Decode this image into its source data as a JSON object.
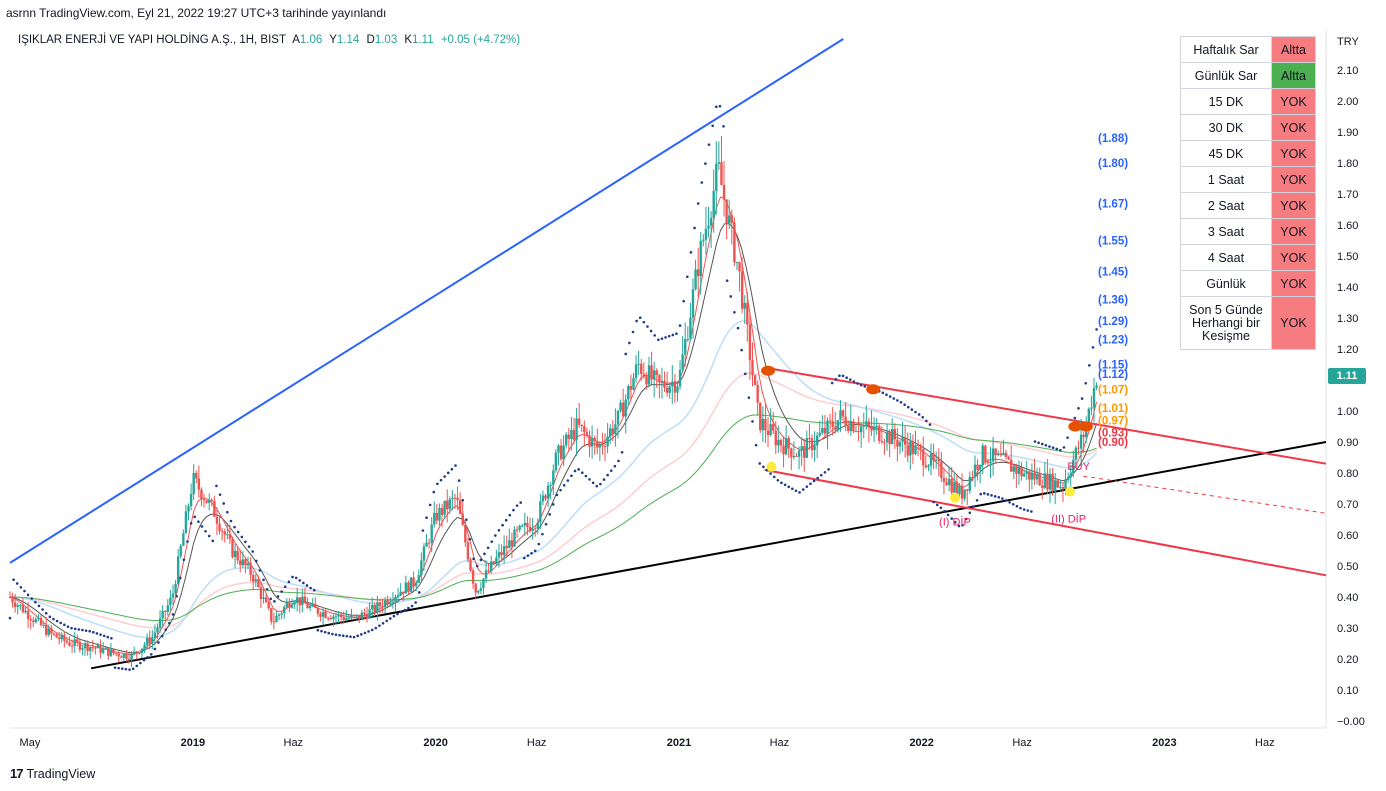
{
  "header": {
    "published": "asrnn TradingView.com, Eyl 21, 2022 19:27 UTC+3 tarihinde yayınlandı"
  },
  "legend": {
    "symbol": "IŞIKLAR ENERJİ VE YAPI HOLDİNG A.Ş., 1H, BIST",
    "a_label": "A",
    "a_value": "1.06",
    "y_label": "Y",
    "y_value": "1.14",
    "d_label": "D",
    "d_value": "1.03",
    "k_label": "K",
    "k_value": "1.11",
    "change": "+0.05 (+4.72%)"
  },
  "price_badge": "1.11",
  "footer": {
    "brand": "TradingView",
    "brand_mark": "17"
  },
  "colors": {
    "up": "#26a69a",
    "down": "#ef5350",
    "blue_trend": "#2962ff",
    "black_trend": "#000000",
    "channel": "#f23645",
    "ma_green": "#4caf50",
    "ma_blue": "#bbdefb",
    "ma_pink": "#ffcdd2",
    "status_red": "#f77c80",
    "status_green": "#4caf50",
    "fib_blue": "#2962ff",
    "fib_orange": "#ff9800",
    "fib_red": "#f23645"
  },
  "signal_table": {
    "rows": [
      {
        "name": "Haftalık Sar",
        "status": "Altta",
        "color": "#f77c80"
      },
      {
        "name": "Günlük Sar",
        "status": "Altta",
        "color": "#4caf50"
      },
      {
        "name": "15 DK",
        "status": "YOK",
        "color": "#f77c80"
      },
      {
        "name": "30 DK",
        "status": "YOK",
        "color": "#f77c80"
      },
      {
        "name": "45 DK",
        "status": "YOK",
        "color": "#f77c80"
      },
      {
        "name": "1 Saat",
        "status": "YOK",
        "color": "#f77c80"
      },
      {
        "name": "2 Saat",
        "status": "YOK",
        "color": "#f77c80"
      },
      {
        "name": "3 Saat",
        "status": "YOK",
        "color": "#f77c80"
      },
      {
        "name": "4 Saat",
        "status": "YOK",
        "color": "#f77c80"
      },
      {
        "name": "Günlük",
        "status": "YOK",
        "color": "#f77c80"
      }
    ],
    "last_row": {
      "name_lines": [
        "Son 5 Günde",
        "Herhangi bir",
        "Kesişme"
      ],
      "status": "YOK",
      "color": "#f77c80"
    }
  },
  "chart_data": {
    "type": "line",
    "currency": "TRY",
    "ylim": [
      0.0,
      2.2
    ],
    "y_ticks": [
      "2.10",
      "2.00",
      "1.90",
      "1.80",
      "1.70",
      "1.60",
      "1.50",
      "1.40",
      "1.30",
      "1.20",
      "1.10",
      "1.00",
      "0.90",
      "0.80",
      "0.70",
      "0.60",
      "0.50",
      "0.40",
      "0.30",
      "0.20",
      "0.10",
      "−0.00"
    ],
    "y_tick_values": [
      2.1,
      2.0,
      1.9,
      1.8,
      1.7,
      1.6,
      1.5,
      1.4,
      1.3,
      1.2,
      1.1,
      1.0,
      0.9,
      0.8,
      0.7,
      0.6,
      0.5,
      0.4,
      0.3,
      0.2,
      0.1,
      0.0
    ],
    "x_ticks": [
      "May",
      "2019",
      "Haz",
      "2020",
      "Haz",
      "2021",
      "Haz",
      "2022",
      "Haz",
      "2023",
      "Haz"
    ],
    "x_tick_dates": [
      "2018-05-01",
      "2019-01-01",
      "2019-06-01",
      "2020-01-01",
      "2020-06-01",
      "2021-01-01",
      "2021-06-01",
      "2022-01-01",
      "2022-06-01",
      "2023-01-01",
      "2023-06-01"
    ],
    "x_range": [
      "2018-04-01",
      "2023-09-01"
    ],
    "series": [
      {
        "values": [
          [
            "2018-04-01",
            0.4
          ],
          [
            "2018-05-01",
            0.34
          ],
          [
            "2018-06-01",
            0.28
          ],
          [
            "2018-07-01",
            0.25
          ],
          [
            "2018-08-01",
            0.24
          ],
          [
            "2018-09-01",
            0.22
          ],
          [
            "2018-10-01",
            0.21
          ],
          [
            "2018-11-01",
            0.27
          ],
          [
            "2018-12-01",
            0.4
          ],
          [
            "2019-01-01",
            0.78
          ],
          [
            "2019-02-01",
            0.68
          ],
          [
            "2019-03-01",
            0.55
          ],
          [
            "2019-04-01",
            0.47
          ],
          [
            "2019-05-01",
            0.32
          ],
          [
            "2019-06-01",
            0.4
          ],
          [
            "2019-07-01",
            0.36
          ],
          [
            "2019-08-01",
            0.34
          ],
          [
            "2019-09-01",
            0.33
          ],
          [
            "2019-10-01",
            0.36
          ],
          [
            "2019-11-01",
            0.41
          ],
          [
            "2019-12-01",
            0.45
          ],
          [
            "2020-01-01",
            0.66
          ],
          [
            "2020-02-01",
            0.72
          ],
          [
            "2020-03-01",
            0.42
          ],
          [
            "2020-04-01",
            0.52
          ],
          [
            "2020-05-01",
            0.6
          ],
          [
            "2020-06-01",
            0.65
          ],
          [
            "2020-07-01",
            0.85
          ],
          [
            "2020-08-01",
            0.95
          ],
          [
            "2020-09-01",
            0.88
          ],
          [
            "2020-10-01",
            0.97
          ],
          [
            "2020-11-01",
            1.15
          ],
          [
            "2020-12-01",
            1.08
          ],
          [
            "2021-01-01",
            1.1
          ],
          [
            "2021-02-01",
            1.5
          ],
          [
            "2021-03-01",
            1.78
          ],
          [
            "2021-04-01",
            1.45
          ],
          [
            "2021-05-01",
            0.97
          ],
          [
            "2021-06-01",
            0.9
          ],
          [
            "2021-07-01",
            0.86
          ],
          [
            "2021-08-01",
            0.92
          ],
          [
            "2021-09-01",
            0.98
          ],
          [
            "2021-10-01",
            0.95
          ],
          [
            "2021-11-01",
            0.93
          ],
          [
            "2021-12-01",
            0.9
          ],
          [
            "2022-01-01",
            0.86
          ],
          [
            "2022-02-01",
            0.8
          ],
          [
            "2022-03-01",
            0.73
          ],
          [
            "2022-04-01",
            0.86
          ],
          [
            "2022-05-01",
            0.84
          ],
          [
            "2022-06-01",
            0.8
          ],
          [
            "2022-07-01",
            0.78
          ],
          [
            "2022-08-01",
            0.76
          ],
          [
            "2022-09-01",
            0.92
          ],
          [
            "2022-09-21",
            1.11
          ]
        ]
      }
    ],
    "fib_levels": [
      {
        "label": "(1.88)",
        "value": 1.88,
        "color": "#2962ff"
      },
      {
        "label": "(1.80)",
        "value": 1.8,
        "color": "#2962ff"
      },
      {
        "label": "(1.67)",
        "value": 1.67,
        "color": "#2962ff"
      },
      {
        "label": "(1.55)",
        "value": 1.55,
        "color": "#2962ff"
      },
      {
        "label": "(1.45)",
        "value": 1.45,
        "color": "#2962ff"
      },
      {
        "label": "(1.36)",
        "value": 1.36,
        "color": "#2962ff"
      },
      {
        "label": "(1.29)",
        "value": 1.29,
        "color": "#2962ff"
      },
      {
        "label": "(1.23)",
        "value": 1.23,
        "color": "#2962ff"
      },
      {
        "label": "(1.15)",
        "value": 1.15,
        "color": "#2962ff"
      },
      {
        "label": "(1.12)",
        "value": 1.12,
        "color": "#2962ff"
      },
      {
        "label": "(1.07)",
        "value": 1.07,
        "color": "#ff9800"
      },
      {
        "label": "(1.01)",
        "value": 1.01,
        "color": "#ff9800"
      },
      {
        "label": "(0.97)",
        "value": 0.97,
        "color": "#ff9800"
      },
      {
        "label": "(0.93)",
        "value": 0.93,
        "color": "#f23645"
      },
      {
        "label": "(0.90)",
        "value": 0.9,
        "color": "#f23645"
      }
    ],
    "annotations": [
      {
        "text": "(I) DİP",
        "date": "2022-02-20",
        "value": 0.63,
        "color": "#e91e63"
      },
      {
        "text": "(II) DİP",
        "date": "2022-08-10",
        "value": 0.64,
        "color": "#e91e63"
      },
      {
        "text": "BUY",
        "date": "2022-08-25",
        "value": 0.81,
        "color": "#e91e63"
      }
    ],
    "trendlines": [
      {
        "name": "blue-upper",
        "color": "#2962ff",
        "points": [
          [
            "2018-04-01",
            0.51
          ],
          [
            "2021-09-05",
            2.2
          ]
        ]
      },
      {
        "name": "black-support",
        "color": "#000000",
        "points": [
          [
            "2018-08-01",
            0.17
          ],
          [
            "2023-09-01",
            0.9
          ]
        ]
      },
      {
        "name": "channel-top",
        "color": "#f23645",
        "points": [
          [
            "2021-05-10",
            1.14
          ],
          [
            "2023-09-01",
            0.83
          ]
        ]
      },
      {
        "name": "channel-bottom",
        "color": "#f23645",
        "points": [
          [
            "2021-05-10",
            0.81
          ],
          [
            "2023-09-01",
            0.47
          ]
        ]
      }
    ]
  }
}
